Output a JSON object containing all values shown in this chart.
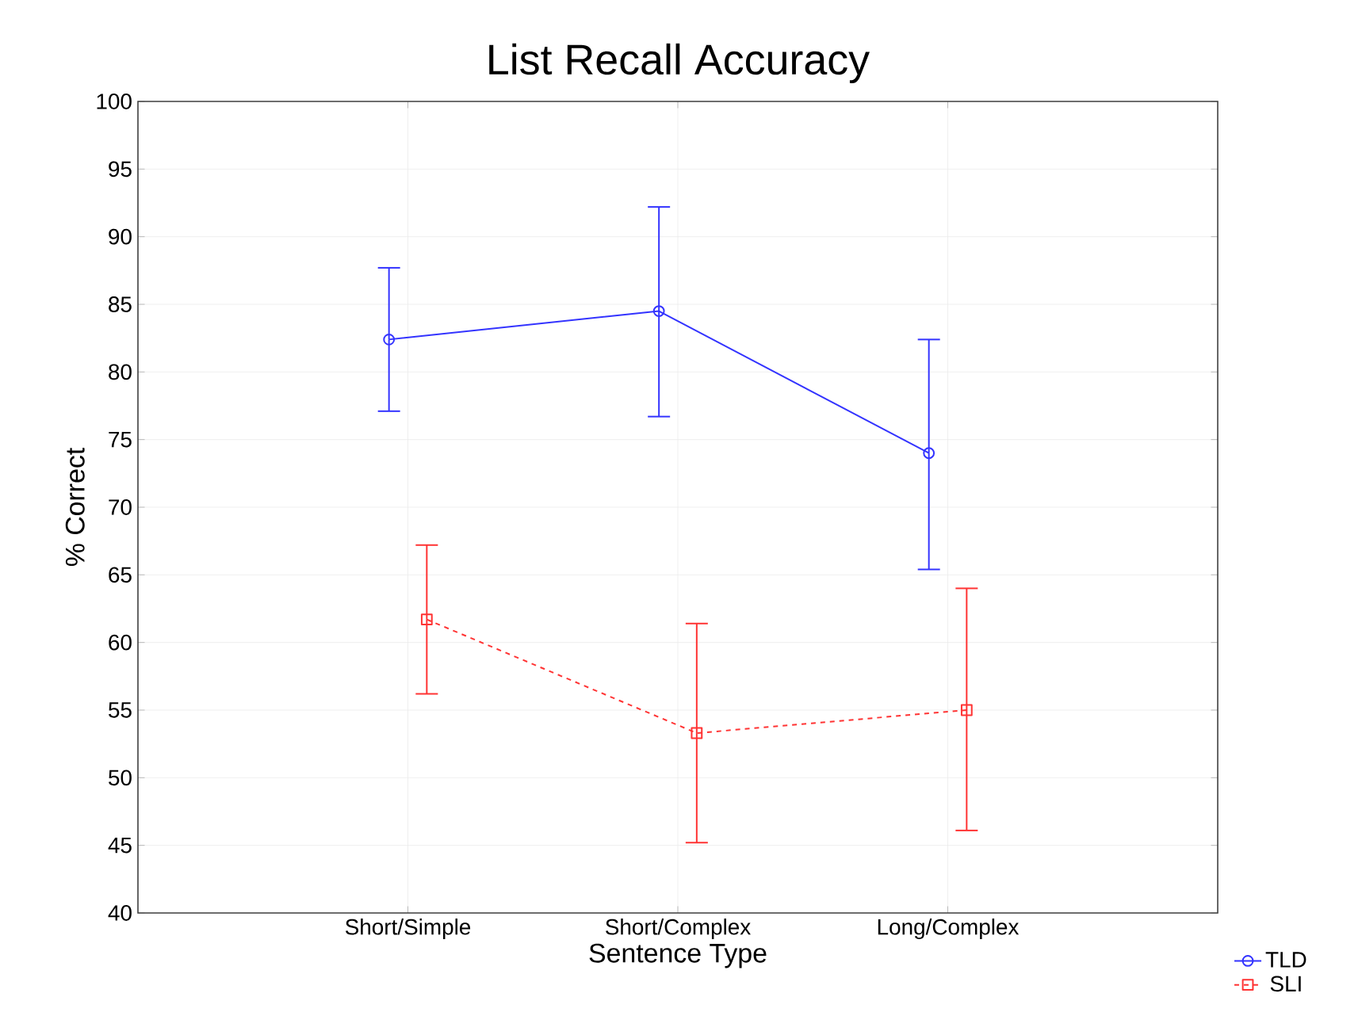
{
  "chart_data": {
    "type": "line",
    "title": "List Recall Accuracy",
    "xlabel": "Sentence Type",
    "ylabel": "% Correct",
    "categories": [
      "Short/Simple",
      "Short/Complex",
      "Long/Complex"
    ],
    "series": [
      {
        "name": "TLD",
        "color": "#3333ff",
        "values": [
          82.4,
          84.5,
          74.0
        ],
        "errors": [
          [
            77.1,
            87.7
          ],
          [
            76.7,
            92.2
          ],
          [
            65.4,
            82.4
          ]
        ],
        "marker": "circle",
        "line_style": "solid"
      },
      {
        "name": "SLI",
        "color": "#ff3333",
        "values": [
          61.7,
          53.3,
          55.0
        ],
        "errors": [
          [
            56.2,
            67.2
          ],
          [
            45.2,
            61.4
          ],
          [
            46.1,
            64.0
          ]
        ],
        "marker": "square",
        "line_style": "dashed"
      }
    ],
    "ylim": [
      40,
      100
    ],
    "yticks": [
      40,
      45,
      50,
      55,
      60,
      65,
      70,
      75,
      80,
      85,
      90,
      95,
      100
    ],
    "grid": true,
    "legend": "bottom right"
  }
}
